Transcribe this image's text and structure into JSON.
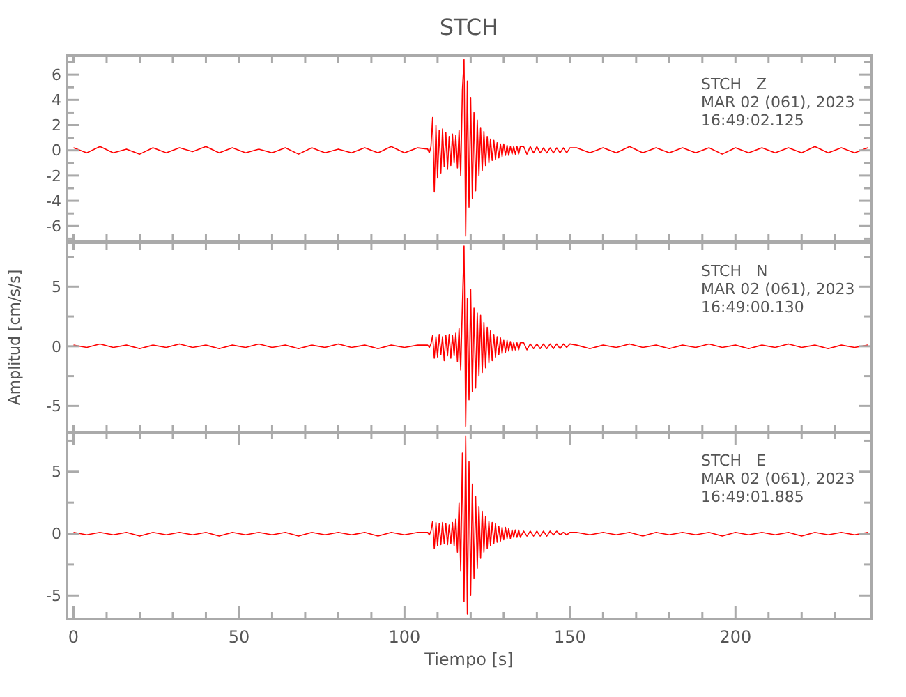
{
  "chart_data": [
    {
      "type": "line",
      "title": "STCH",
      "annotations": [
        "STCH   Z",
        "MAR 02 (061), 2023",
        "16:49:02.125"
      ],
      "tick_labels": "y",
      "xlim": [
        -2,
        241
      ],
      "xticks": [
        {
          "value": 0,
          "label": null
        },
        {
          "value": 10,
          "label": null
        },
        {
          "value": 20,
          "label": null
        },
        {
          "value": 30,
          "label": null
        },
        {
          "value": 40,
          "label": null
        },
        {
          "value": 50,
          "label": null
        },
        {
          "value": 60,
          "label": null
        },
        {
          "value": 70,
          "label": null
        },
        {
          "value": 80,
          "label": null
        },
        {
          "value": 90,
          "label": null
        },
        {
          "value": 100,
          "label": null
        },
        {
          "value": 110,
          "label": null
        },
        {
          "value": 120,
          "label": null
        },
        {
          "value": 130,
          "label": null
        },
        {
          "value": 140,
          "label": null
        },
        {
          "value": 150,
          "label": null
        },
        {
          "value": 160,
          "label": null
        },
        {
          "value": 170,
          "label": null
        },
        {
          "value": 180,
          "label": null
        },
        {
          "value": 190,
          "label": null
        },
        {
          "value": 200,
          "label": null
        },
        {
          "value": 210,
          "label": null
        },
        {
          "value": 220,
          "label": null
        },
        {
          "value": 230,
          "label": null
        }
      ],
      "ylim": [
        -7.2,
        7.5
      ],
      "yticks": [
        {
          "value": -7,
          "label": null
        },
        -6,
        {
          "value": -5,
          "label": null
        },
        -4,
        {
          "value": -3,
          "label": null
        },
        -2,
        {
          "value": -1,
          "label": null
        },
        0,
        {
          "value": 1,
          "label": null
        },
        2,
        {
          "value": 3,
          "label": null
        },
        4,
        {
          "value": 5,
          "label": null
        },
        6,
        {
          "value": 7,
          "label": null
        }
      ],
      "x": [
        0,
        4,
        8,
        12,
        16,
        20,
        24,
        28,
        32,
        36,
        40,
        44,
        48,
        52,
        56,
        60,
        64,
        68,
        72,
        76,
        80,
        84,
        88,
        92,
        96,
        100,
        104,
        107,
        107.5,
        108,
        108.5,
        109,
        109.5,
        110,
        110.5,
        111,
        111.5,
        112,
        112.5,
        113,
        113.5,
        114,
        114.5,
        115,
        115.5,
        116,
        116.5,
        117,
        117.5,
        118,
        118.5,
        119,
        119.5,
        120,
        120.5,
        121,
        121.5,
        122,
        122.5,
        123,
        123.5,
        124,
        124.5,
        125,
        125.5,
        126,
        126.5,
        127,
        127.5,
        128,
        128.5,
        129,
        129.5,
        130,
        130.5,
        131,
        131.5,
        132,
        132.5,
        133,
        133.5,
        134,
        134.5,
        135,
        136,
        137,
        138,
        139,
        140,
        141,
        142,
        143,
        144,
        145,
        146,
        147,
        148,
        149,
        150,
        152,
        156,
        160,
        164,
        168,
        172,
        176,
        180,
        184,
        188,
        192,
        196,
        200,
        204,
        208,
        212,
        216,
        220,
        224,
        228,
        232,
        236,
        240
      ],
      "series": [
        {
          "color": "#ff0000",
          "values": [
            0.2,
            -0.2,
            0.3,
            -0.2,
            0.1,
            -0.3,
            0.2,
            -0.2,
            0.2,
            -0.1,
            0.3,
            -0.2,
            0.2,
            -0.2,
            0.1,
            -0.2,
            0.2,
            -0.3,
            0.2,
            -0.2,
            0.1,
            -0.2,
            0.2,
            -0.2,
            0.3,
            -0.2,
            0.2,
            0.1,
            -0.2,
            0.3,
            2.6,
            -3.3,
            2.0,
            -2.2,
            1.6,
            -1.8,
            1.7,
            -1.3,
            1.4,
            -1.5,
            1.1,
            -1.2,
            1.3,
            -1.0,
            1.2,
            -1.4,
            1.6,
            -2.0,
            4.8,
            7.2,
            -6.8,
            5.5,
            -4.5,
            4.2,
            -3.8,
            3.0,
            -3.2,
            2.4,
            -2.0,
            1.8,
            -1.6,
            1.5,
            -1.2,
            1.1,
            -1.0,
            0.9,
            -0.8,
            0.8,
            -0.7,
            0.6,
            -0.6,
            0.5,
            -0.5,
            0.5,
            -0.4,
            0.4,
            -0.4,
            0.3,
            -0.3,
            0.3,
            -0.3,
            0.3,
            -0.3,
            0.3,
            0.3,
            -0.3,
            0.3,
            -0.2,
            0.3,
            -0.2,
            0.2,
            -0.2,
            0.2,
            -0.2,
            0.2,
            -0.2,
            0.2,
            -0.2,
            0.2,
            0.2,
            -0.2,
            0.2,
            -0.2,
            0.3,
            -0.2,
            0.2,
            -0.2,
            0.2,
            -0.2,
            0.2,
            -0.3,
            0.2,
            -0.2,
            0.2,
            -0.2,
            0.2,
            -0.2,
            0.3,
            -0.2,
            0.2,
            -0.2,
            0.2
          ]
        }
      ]
    },
    {
      "type": "line",
      "ylabel": "Amplitud [cm/s/s]",
      "annotations": [
        "STCH   N",
        "MAR 02 (061), 2023",
        "16:49:00.130"
      ],
      "tick_labels": "y",
      "xlim": [
        -2,
        241
      ],
      "xticks": [
        {
          "value": 0,
          "label": null
        },
        {
          "value": 10,
          "label": null
        },
        {
          "value": 20,
          "label": null
        },
        {
          "value": 30,
          "label": null
        },
        {
          "value": 40,
          "label": null
        },
        {
          "value": 50,
          "label": null
        },
        {
          "value": 60,
          "label": null
        },
        {
          "value": 70,
          "label": null
        },
        {
          "value": 80,
          "label": null
        },
        {
          "value": 90,
          "label": null
        },
        {
          "value": 100,
          "label": null
        },
        {
          "value": 110,
          "label": null
        },
        {
          "value": 120,
          "label": null
        },
        {
          "value": 130,
          "label": null
        },
        {
          "value": 140,
          "label": null
        },
        {
          "value": 150,
          "label": null
        },
        {
          "value": 160,
          "label": null
        },
        {
          "value": 170,
          "label": null
        },
        {
          "value": 180,
          "label": null
        },
        {
          "value": 190,
          "label": null
        },
        {
          "value": 200,
          "label": null
        },
        {
          "value": 210,
          "label": null
        },
        {
          "value": 220,
          "label": null
        },
        {
          "value": 230,
          "label": null
        }
      ],
      "ylim": [
        -7.2,
        8.7
      ],
      "yticks": [
        -5,
        {
          "value": -2.5,
          "label": null
        },
        0,
        {
          "value": 2.5,
          "label": null
        },
        5,
        {
          "value": 7.5,
          "label": null
        }
      ],
      "x": [
        0,
        4,
        8,
        12,
        16,
        20,
        24,
        28,
        32,
        36,
        40,
        44,
        48,
        52,
        56,
        60,
        64,
        68,
        72,
        76,
        80,
        84,
        88,
        92,
        96,
        100,
        104,
        107,
        107.5,
        108,
        108.5,
        109,
        109.5,
        110,
        110.5,
        111,
        111.5,
        112,
        112.5,
        113,
        113.5,
        114,
        114.5,
        115,
        115.5,
        116,
        116.5,
        117,
        117.5,
        118,
        118.5,
        119,
        119.5,
        120,
        120.5,
        121,
        121.5,
        122,
        122.5,
        123,
        123.5,
        124,
        124.5,
        125,
        125.5,
        126,
        126.5,
        127,
        127.5,
        128,
        128.5,
        129,
        129.5,
        130,
        130.5,
        131,
        131.5,
        132,
        132.5,
        133,
        133.5,
        134,
        134.5,
        135,
        136,
        137,
        138,
        139,
        140,
        141,
        142,
        143,
        144,
        145,
        146,
        147,
        148,
        149,
        150,
        152,
        156,
        160,
        164,
        168,
        172,
        176,
        180,
        184,
        188,
        192,
        196,
        200,
        204,
        208,
        212,
        216,
        220,
        224,
        228,
        232,
        236,
        240
      ],
      "series": [
        {
          "color": "#ff0000",
          "values": [
            0.1,
            -0.1,
            0.2,
            -0.1,
            0.1,
            -0.2,
            0.1,
            -0.1,
            0.2,
            -0.1,
            0.1,
            -0.2,
            0.1,
            -0.1,
            0.2,
            -0.1,
            0.1,
            -0.2,
            0.1,
            -0.1,
            0.2,
            -0.1,
            0.1,
            -0.2,
            0.1,
            -0.1,
            0.1,
            0.1,
            -0.1,
            0.2,
            0.9,
            -1.0,
            0.8,
            -0.9,
            1.0,
            -0.7,
            0.8,
            -1.2,
            0.9,
            -0.8,
            1.0,
            -1.0,
            0.9,
            -0.8,
            1.1,
            -1.3,
            1.5,
            -2.0,
            3.5,
            8.4,
            -6.7,
            4.0,
            -4.5,
            4.8,
            -3.8,
            3.2,
            -3.5,
            2.8,
            -2.5,
            2.6,
            -2.2,
            2.0,
            -1.8,
            1.6,
            -1.4,
            1.3,
            -1.2,
            1.0,
            -0.9,
            0.8,
            -0.7,
            0.7,
            -0.6,
            0.5,
            -0.5,
            0.5,
            -0.4,
            0.4,
            -0.4,
            0.3,
            -0.3,
            0.3,
            -0.3,
            0.3,
            0.3,
            -0.3,
            0.2,
            -0.2,
            0.2,
            -0.2,
            0.2,
            -0.2,
            0.2,
            -0.2,
            0.2,
            -0.2,
            0.2,
            -0.1,
            0.2,
            0.1,
            -0.2,
            0.1,
            -0.1,
            0.2,
            -0.1,
            0.1,
            -0.2,
            0.1,
            -0.1,
            0.2,
            -0.1,
            0.1,
            -0.2,
            0.1,
            -0.1,
            0.2,
            -0.1,
            0.1,
            -0.2,
            0.1,
            -0.1,
            0.1
          ]
        }
      ]
    },
    {
      "type": "line",
      "xlabel": "Tiempo [s]",
      "annotations": [
        "STCH   E",
        "MAR 02 (061), 2023",
        "16:49:01.885"
      ],
      "xlim": [
        -2,
        241
      ],
      "xticks": [
        0,
        {
          "value": 10,
          "label": null
        },
        {
          "value": 20,
          "label": null
        },
        {
          "value": 30,
          "label": null
        },
        {
          "value": 40,
          "label": null
        },
        50,
        {
          "value": 60,
          "label": null
        },
        {
          "value": 70,
          "label": null
        },
        {
          "value": 80,
          "label": null
        },
        {
          "value": 90,
          "label": null
        },
        100,
        {
          "value": 110,
          "label": null
        },
        {
          "value": 120,
          "label": null
        },
        {
          "value": 130,
          "label": null
        },
        {
          "value": 140,
          "label": null
        },
        150,
        {
          "value": 160,
          "label": null
        },
        {
          "value": 170,
          "label": null
        },
        {
          "value": 180,
          "label": null
        },
        {
          "value": 190,
          "label": null
        },
        200,
        {
          "value": 210,
          "label": null
        },
        {
          "value": 220,
          "label": null
        },
        {
          "value": 230,
          "label": null
        }
      ],
      "ylim": [
        -6.9,
        8.2
      ],
      "yticks": [
        -5,
        {
          "value": -2.5,
          "label": null
        },
        0,
        {
          "value": 2.5,
          "label": null
        },
        5,
        {
          "value": 7.5,
          "label": null
        }
      ],
      "x": [
        0,
        4,
        8,
        12,
        16,
        20,
        24,
        28,
        32,
        36,
        40,
        44,
        48,
        52,
        56,
        60,
        64,
        68,
        72,
        76,
        80,
        84,
        88,
        92,
        96,
        100,
        104,
        107,
        107.5,
        108,
        108.5,
        109,
        109.5,
        110,
        110.5,
        111,
        111.5,
        112,
        112.5,
        113,
        113.5,
        114,
        114.5,
        115,
        115.5,
        116,
        116.5,
        117,
        117.5,
        118,
        118.5,
        119,
        119.5,
        120,
        120.5,
        121,
        121.5,
        122,
        122.5,
        123,
        123.5,
        124,
        124.5,
        125,
        125.5,
        126,
        126.5,
        127,
        127.5,
        128,
        128.5,
        129,
        129.5,
        130,
        130.5,
        131,
        131.5,
        132,
        132.5,
        133,
        133.5,
        134,
        134.5,
        135,
        136,
        137,
        138,
        139,
        140,
        141,
        142,
        143,
        144,
        145,
        146,
        147,
        148,
        149,
        150,
        152,
        156,
        160,
        164,
        168,
        172,
        176,
        180,
        184,
        188,
        192,
        196,
        200,
        204,
        208,
        212,
        216,
        220,
        224,
        228,
        232,
        236,
        240
      ],
      "series": [
        {
          "color": "#ff0000",
          "values": [
            0.1,
            -0.1,
            0.1,
            -0.1,
            0.1,
            -0.2,
            0.1,
            -0.1,
            0.1,
            -0.1,
            0.1,
            -0.2,
            0.1,
            -0.1,
            0.1,
            -0.1,
            0.1,
            -0.2,
            0.1,
            -0.1,
            0.1,
            -0.1,
            0.1,
            -0.2,
            0.1,
            -0.1,
            0.1,
            0.1,
            -0.1,
            0.2,
            1.0,
            -1.2,
            0.9,
            -1.0,
            0.8,
            -0.9,
            0.9,
            -0.8,
            0.8,
            -0.9,
            0.7,
            -0.8,
            0.9,
            -1.0,
            1.2,
            -1.5,
            2.5,
            -3.0,
            6.5,
            -5.5,
            7.9,
            -6.5,
            5.8,
            -5.0,
            4.0,
            -3.6,
            3.0,
            -2.8,
            2.2,
            -2.0,
            1.8,
            -1.5,
            1.4,
            -1.2,
            1.0,
            -1.0,
            0.9,
            -0.8,
            0.8,
            -0.7,
            0.6,
            -0.6,
            0.5,
            -0.5,
            0.5,
            -0.4,
            0.4,
            -0.4,
            0.3,
            -0.3,
            0.3,
            -0.3,
            0.3,
            -0.3,
            0.2,
            -0.2,
            0.2,
            -0.2,
            0.2,
            -0.2,
            0.2,
            -0.2,
            0.2,
            -0.1,
            0.2,
            -0.1,
            0.1,
            -0.1,
            0.1,
            0.1,
            -0.1,
            0.1,
            -0.1,
            0.1,
            -0.2,
            0.1,
            -0.1,
            0.1,
            -0.1,
            0.1,
            -0.2,
            0.1,
            -0.1,
            0.1,
            -0.1,
            0.1,
            -0.2,
            0.1,
            -0.1,
            0.1,
            -0.1,
            0.1
          ]
        }
      ]
    }
  ]
}
